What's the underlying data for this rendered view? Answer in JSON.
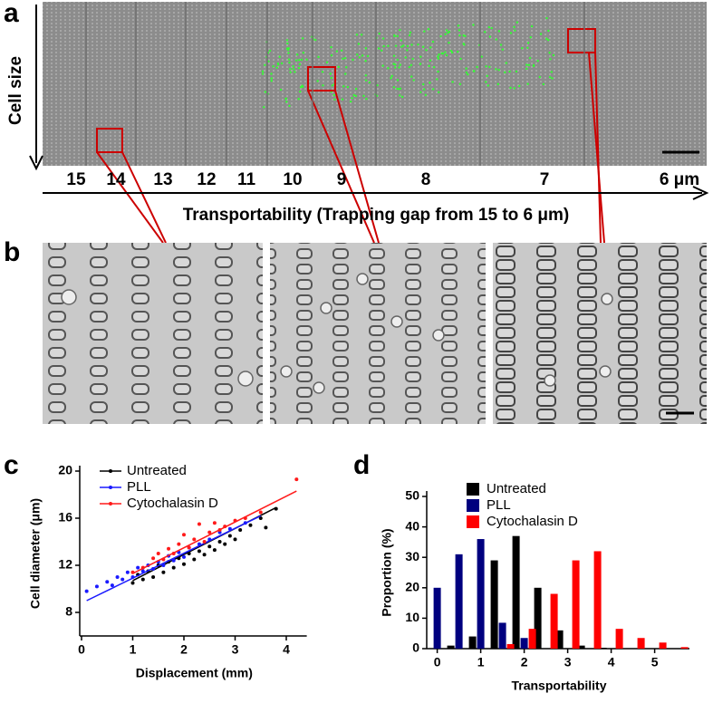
{
  "figure": {
    "panel_labels": [
      "a",
      "b",
      "c",
      "d"
    ],
    "cell_size_label": "Cell size",
    "gap_labels": [
      "15",
      "14",
      "13",
      "12",
      "11",
      "10",
      "9",
      "8",
      "7",
      "6 μm"
    ],
    "gap_axis_label": "Transportability (Trapping gap from 15 to 6 μm)"
  },
  "chart_data": [
    {
      "type": "scatter",
      "xlabel": "Displacement (mm)",
      "ylabel": "Cell diameter (μm)",
      "xlim": [
        0,
        4.4
      ],
      "ylim": [
        6,
        20
      ],
      "xticks": [
        0,
        1,
        2,
        3,
        4
      ],
      "yticks": [
        8,
        12,
        16,
        20
      ],
      "series": [
        {
          "name": "Untreated",
          "color": "#000000",
          "x": [
            1.0,
            1.1,
            1.2,
            1.3,
            1.4,
            1.5,
            1.6,
            1.7,
            1.8,
            1.9,
            2.0,
            2.1,
            2.2,
            2.3,
            2.4,
            2.5,
            2.6,
            2.7,
            2.8,
            2.9,
            3.0,
            3.1,
            3.3,
            3.5,
            3.6,
            3.8
          ],
          "values": [
            10.5,
            11.2,
            10.8,
            11.5,
            11.0,
            12.0,
            11.4,
            12.3,
            11.8,
            12.6,
            12.1,
            13.0,
            12.5,
            13.2,
            12.9,
            13.6,
            13.3,
            14.0,
            13.8,
            14.5,
            14.2,
            15.0,
            15.4,
            16.0,
            15.2,
            16.8
          ],
          "fit": {
            "x": [
              1.0,
              3.8
            ],
            "values": [
              10.7,
              16.9
            ]
          }
        },
        {
          "name": "PLL",
          "color": "#1a1aff",
          "x": [
            0.1,
            0.3,
            0.5,
            0.6,
            0.7,
            0.8,
            0.9,
            1.0,
            1.1,
            1.2,
            1.3,
            1.4,
            1.5,
            1.6,
            1.7,
            1.8,
            1.9,
            2.0,
            2.1,
            2.3,
            2.5,
            2.7,
            2.9,
            3.2
          ],
          "values": [
            9.8,
            10.2,
            10.6,
            10.3,
            11.0,
            10.8,
            11.4,
            11.0,
            11.8,
            11.5,
            12.0,
            11.7,
            12.3,
            12.0,
            12.8,
            12.4,
            13.1,
            12.7,
            13.5,
            13.8,
            14.2,
            14.8,
            15.1,
            15.6
          ],
          "fit": {
            "x": [
              0.1,
              3.5
            ],
            "values": [
              9.0,
              16.2
            ]
          }
        },
        {
          "name": "Cytochalasin D",
          "color": "#ff1a1a",
          "x": [
            1.0,
            1.2,
            1.4,
            1.5,
            1.6,
            1.7,
            1.8,
            1.9,
            2.0,
            2.1,
            2.2,
            2.3,
            2.4,
            2.5,
            2.6,
            2.7,
            2.8,
            3.0,
            3.2,
            3.5,
            4.2
          ],
          "values": [
            11.4,
            11.8,
            12.6,
            13.0,
            12.5,
            13.4,
            13.0,
            13.8,
            14.6,
            13.5,
            14.2,
            15.5,
            14.0,
            14.8,
            15.6,
            15.0,
            15.3,
            15.8,
            16.0,
            16.5,
            19.3
          ],
          "fit": {
            "x": [
              1.0,
              4.2
            ],
            "values": [
              11.3,
              18.3
            ]
          }
        }
      ]
    },
    {
      "type": "bar",
      "xlabel": "Transportability",
      "ylabel": "Proportion (%)",
      "xlim": [
        -0.2,
        5.8
      ],
      "ylim": [
        0,
        50
      ],
      "xticks": [
        0,
        1,
        2,
        3,
        4,
        5
      ],
      "yticks": [
        0,
        10,
        20,
        30,
        40,
        50
      ],
      "x": [
        0,
        0.5,
        1,
        1.5,
        2,
        2.5,
        3,
        3.5,
        4,
        4.5,
        5,
        5.5
      ],
      "series": [
        {
          "name": "Untreated",
          "color": "#000000",
          "values": [
            0,
            1,
            4,
            29,
            37,
            20,
            6,
            1,
            0.3,
            0,
            0,
            0
          ]
        },
        {
          "name": "PLL",
          "color": "#00007f",
          "values": [
            20,
            31,
            36,
            8.5,
            3.5,
            0,
            0,
            0,
            0,
            0,
            0,
            0
          ]
        },
        {
          "name": "Cytochalasin D",
          "color": "#ff0000",
          "values": [
            0,
            0,
            0,
            1.5,
            6.5,
            18,
            29,
            32,
            6.5,
            3.5,
            2,
            0.5
          ]
        }
      ]
    }
  ]
}
